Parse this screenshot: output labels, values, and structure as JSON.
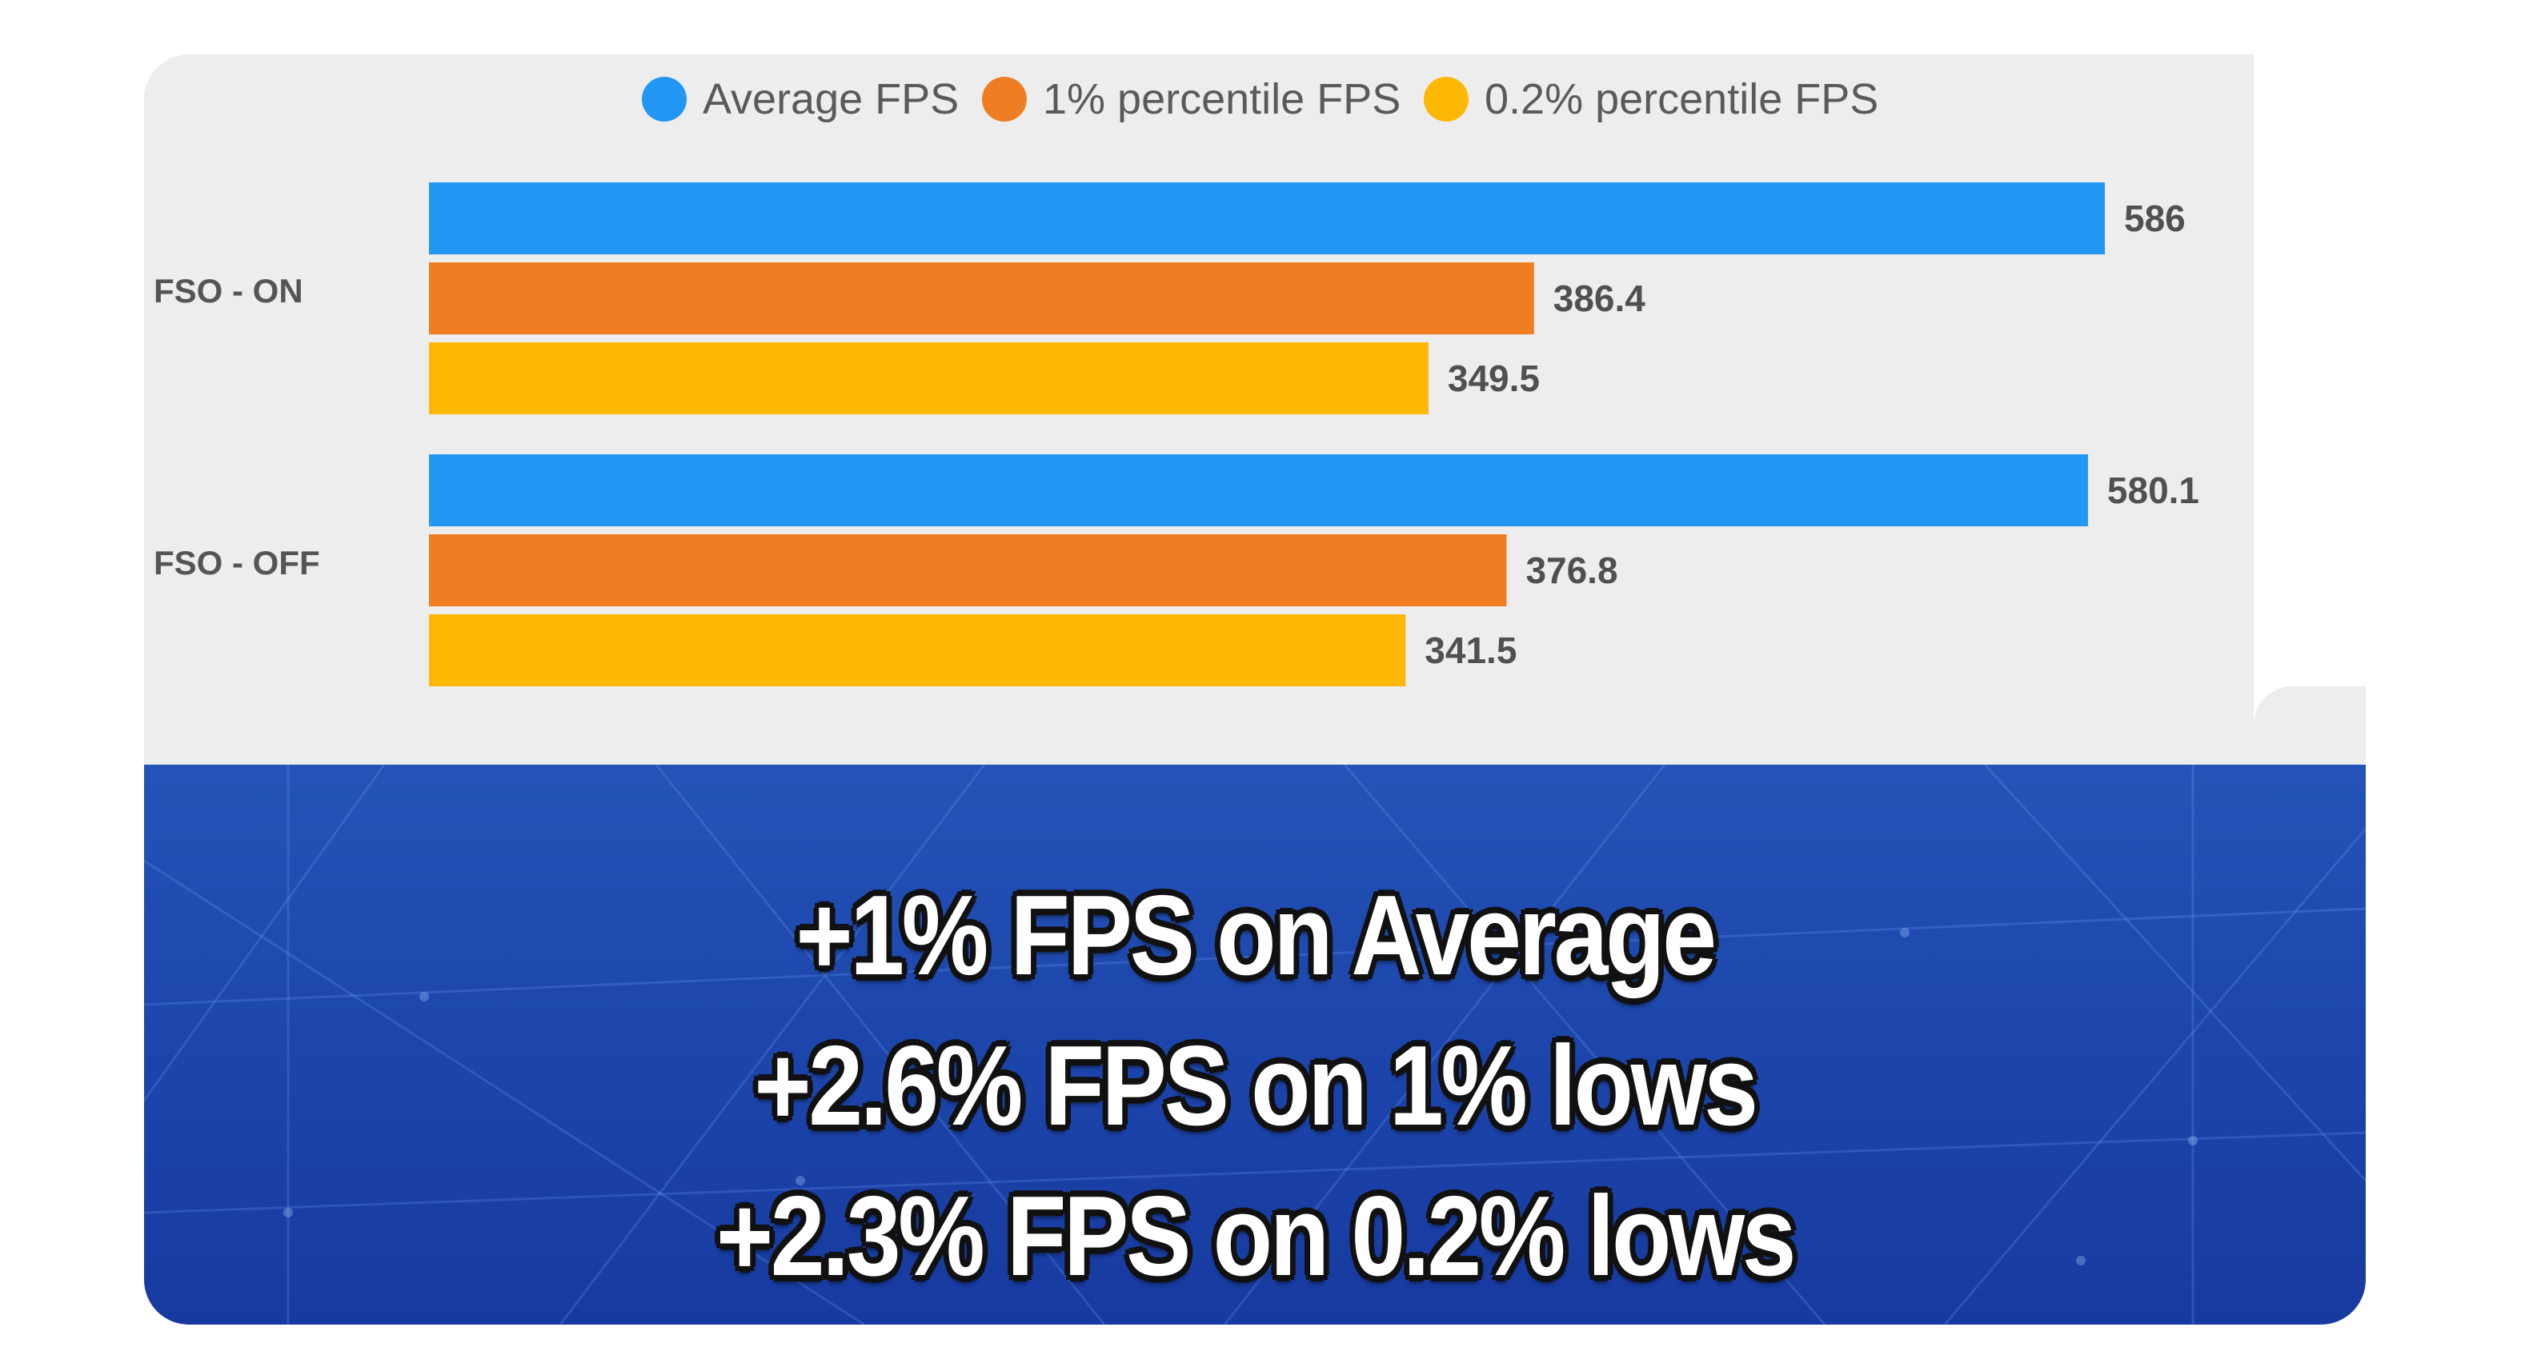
{
  "chart_data": {
    "type": "bar",
    "orientation": "horizontal",
    "categories": [
      "FSO - ON",
      "FSO - OFF"
    ],
    "series": [
      {
        "name": "Average FPS",
        "color": "#2196f3",
        "values": [
          586,
          580.1
        ],
        "labels": [
          "586",
          "580.1"
        ]
      },
      {
        "name": "1% percentile FPS",
        "color": "#ef7d22",
        "values": [
          386.4,
          376.8
        ],
        "labels": [
          "386.4",
          "376.8"
        ]
      },
      {
        "name": "0.2% percentile FPS",
        "color": "#fdb705",
        "values": [
          349.5,
          341.5
        ],
        "labels": [
          "349.5",
          "341.5"
        ]
      }
    ],
    "xlim": [
      0,
      586
    ],
    "legend_position": "top-center",
    "grid": false,
    "title": "",
    "xlabel": "",
    "ylabel": ""
  },
  "banner": {
    "lines": [
      "+1% FPS on Average",
      "+2.6% FPS on 1% lows",
      "+2.3% FPS on 0.2% lows"
    ]
  }
}
